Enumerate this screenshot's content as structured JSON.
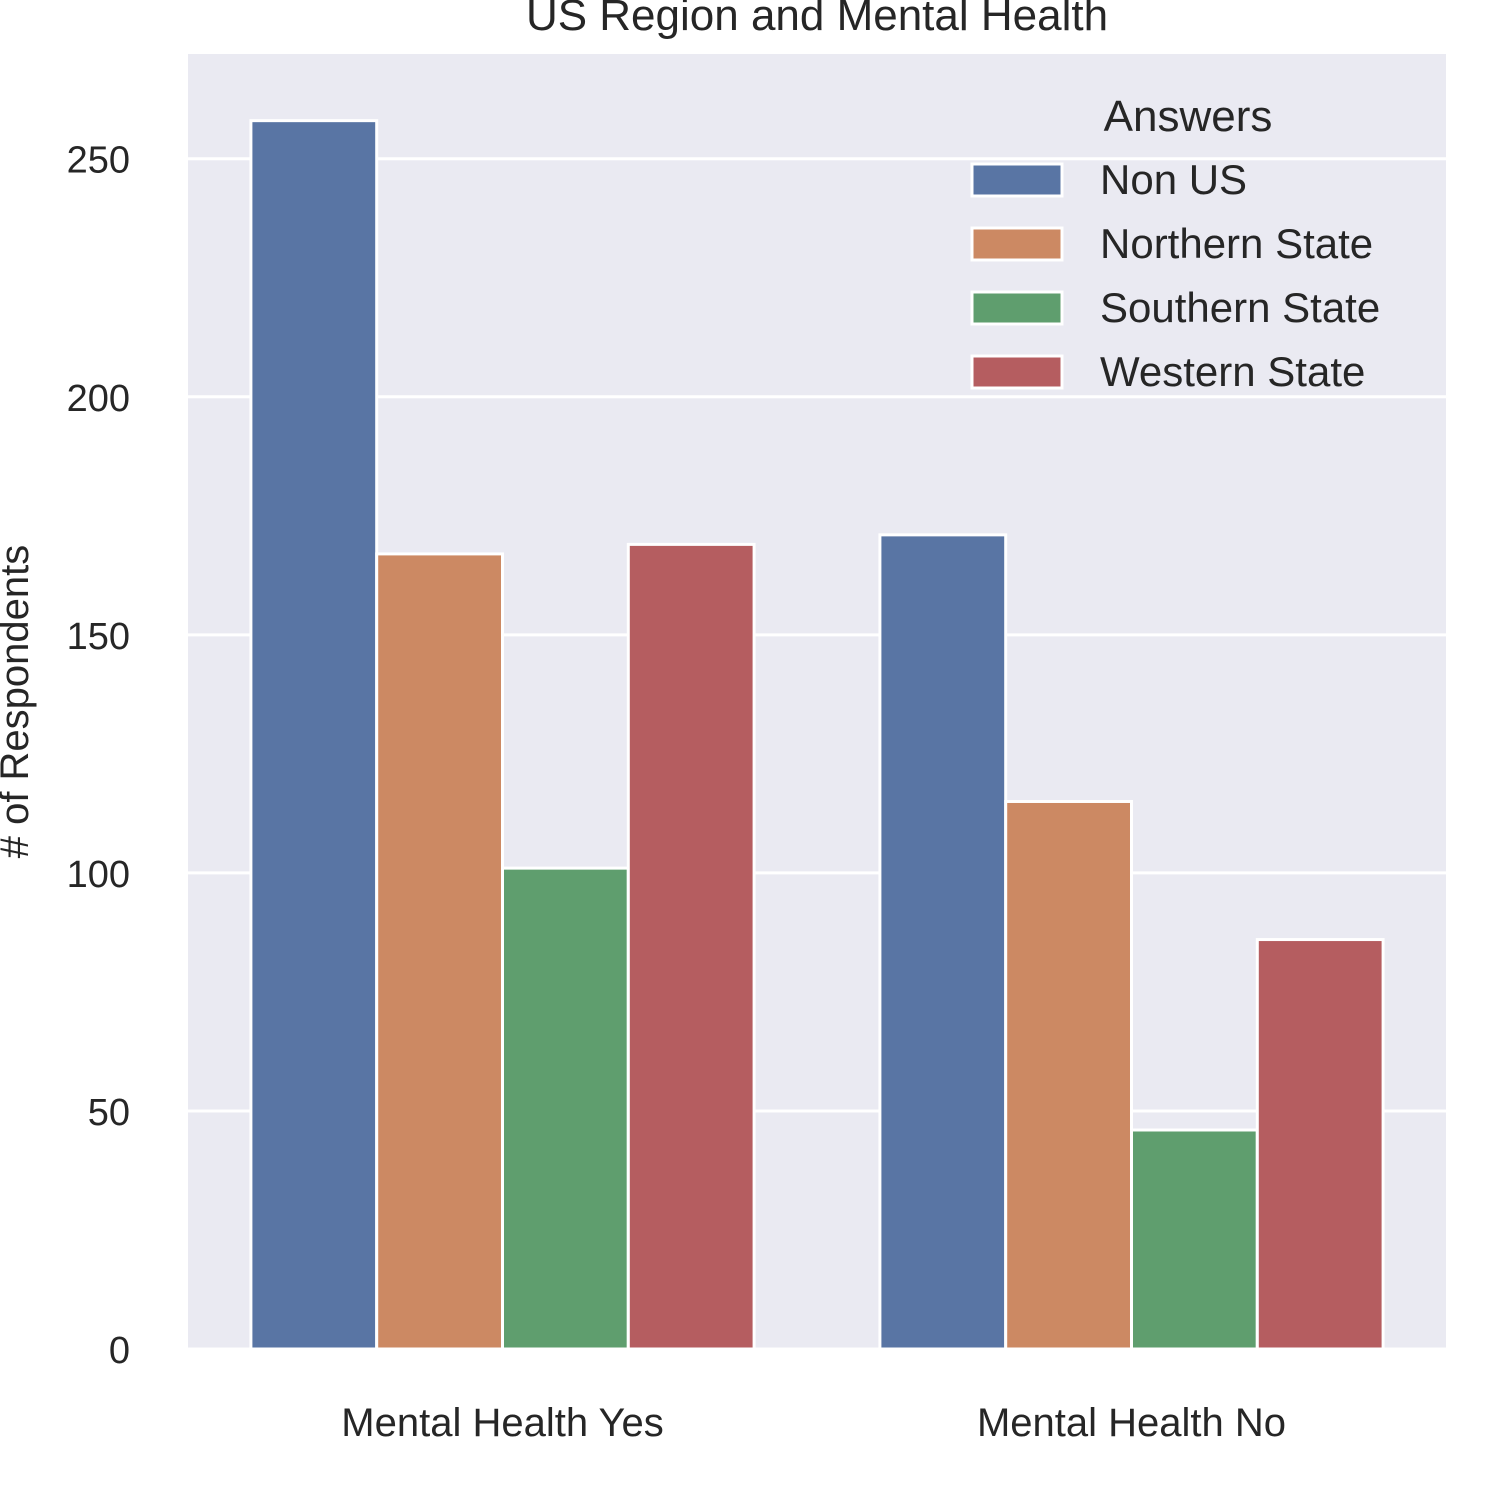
{
  "chart_data": {
    "type": "bar",
    "title": "US Region and Mental Health",
    "xlabel": "",
    "ylabel": "# of Respondents",
    "categories": [
      "Mental Health Yes",
      "Mental Health No"
    ],
    "series": [
      {
        "name": "Non US",
        "values": [
          258,
          171
        ],
        "color": "#5975a4"
      },
      {
        "name": "Northern State",
        "values": [
          167,
          115
        ],
        "color": "#cc8963"
      },
      {
        "name": "Southern State",
        "values": [
          101,
          46
        ],
        "color": "#5f9e6e"
      },
      {
        "name": "Western State",
        "values": [
          169,
          86
        ],
        "color": "#b55d60"
      }
    ],
    "ylim": [
      0,
      272
    ],
    "yticks": [
      0,
      50,
      100,
      150,
      200,
      250
    ],
    "grid": true,
    "legend": {
      "title": "Answers",
      "position": "top-right"
    },
    "background": "#eaeaf2"
  }
}
